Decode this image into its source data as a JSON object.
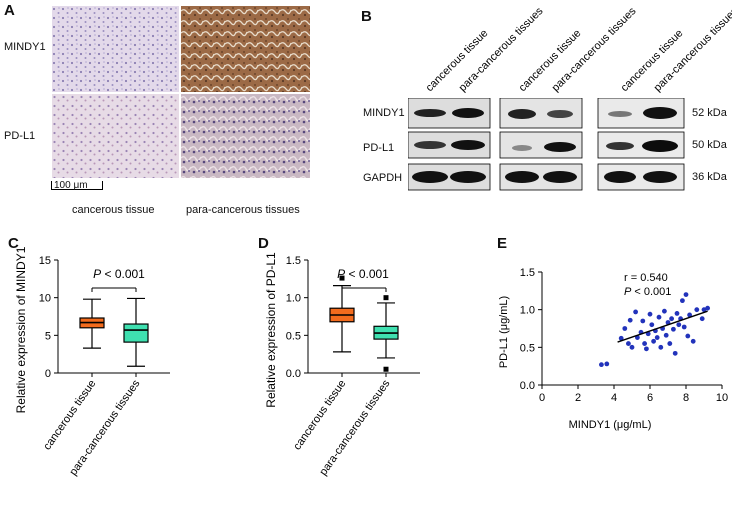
{
  "panels": {
    "A": {
      "letter": "A",
      "row_labels": [
        "MINDY1",
        "PD-L1"
      ],
      "col_labels": [
        "cancerous tissue",
        "para-cancerous tissues"
      ],
      "scale_bar": "100 μm"
    },
    "B": {
      "letter": "B",
      "lane_labels": [
        "cancerous tissue",
        "para-cancerous tissues",
        "cancerous tissue",
        "para-cancerous tissues",
        "cancerous tissue",
        "para-cancerous tissues"
      ],
      "row_labels": [
        "MINDY1",
        "PD-L1",
        "GAPDH"
      ],
      "kda_labels": [
        "52 kDa",
        "50 kDa",
        "36 kDa"
      ]
    },
    "C": {
      "letter": "C"
    },
    "D": {
      "letter": "D"
    },
    "E": {
      "letter": "E"
    }
  },
  "colors": {
    "orange": "#f26b1d",
    "teal": "#3fe0b0",
    "scatter": "#2233bb"
  },
  "chart_data": [
    {
      "panel": "C",
      "type": "boxplot",
      "ylabel": "Relative expression of MINDY1",
      "ylim": [
        0,
        15
      ],
      "yticks": [
        0,
        5,
        10,
        15
      ],
      "annotation": "P < 0.001",
      "groups": [
        {
          "name": "cancerous tissue",
          "color": "#f26b1d",
          "min": 3.3,
          "q1": 6.0,
          "median": 6.7,
          "q3": 7.3,
          "max": 9.8,
          "outliers": []
        },
        {
          "name": "para-cancerous tissues",
          "color": "#3fe0b0",
          "min": 0.9,
          "q1": 4.1,
          "median": 5.7,
          "q3": 6.5,
          "max": 9.9,
          "outliers": []
        }
      ]
    },
    {
      "panel": "D",
      "type": "boxplot",
      "ylabel": "Relative expression of PD-L1",
      "ylim": [
        0.0,
        1.5
      ],
      "yticks": [
        0.0,
        0.5,
        1.0,
        1.5
      ],
      "annotation": "P < 0.001",
      "groups": [
        {
          "name": "cancerous tissue",
          "color": "#f26b1d",
          "min": 0.28,
          "q1": 0.68,
          "median": 0.77,
          "q3": 0.86,
          "max": 1.16,
          "outliers": [
            1.26
          ]
        },
        {
          "name": "para-cancerous tissues",
          "color": "#3fe0b0",
          "min": 0.2,
          "q1": 0.45,
          "median": 0.53,
          "q3": 0.62,
          "max": 0.93,
          "outliers": [
            1.0,
            0.05
          ]
        }
      ]
    },
    {
      "panel": "E",
      "type": "scatter",
      "xlabel": "MINDY1 (μg/mL)",
      "ylabel": "PD-L1 (μg/mL)",
      "xlim": [
        0,
        10
      ],
      "ylim": [
        0.0,
        1.5
      ],
      "xticks": [
        0,
        2,
        4,
        6,
        8,
        10
      ],
      "yticks": [
        0.0,
        0.5,
        1.0,
        1.5
      ],
      "annotation_r": "r = 0.540",
      "annotation_p": "P < 0.001",
      "fit_line": {
        "x0": 4.2,
        "y0": 0.57,
        "x1": 9.2,
        "y1": 0.98
      },
      "points": [
        [
          3.3,
          0.27
        ],
        [
          3.6,
          0.28
        ],
        [
          4.4,
          0.62
        ],
        [
          4.6,
          0.75
        ],
        [
          4.8,
          0.55
        ],
        [
          4.9,
          0.86
        ],
        [
          5.0,
          0.5
        ],
        [
          5.2,
          0.97
        ],
        [
          5.3,
          0.63
        ],
        [
          5.5,
          0.7
        ],
        [
          5.6,
          0.85
        ],
        [
          5.7,
          0.55
        ],
        [
          5.8,
          0.48
        ],
        [
          5.9,
          0.68
        ],
        [
          6.0,
          0.94
        ],
        [
          6.1,
          0.8
        ],
        [
          6.2,
          0.58
        ],
        [
          6.3,
          0.72
        ],
        [
          6.4,
          0.63
        ],
        [
          6.5,
          0.9
        ],
        [
          6.6,
          0.5
        ],
        [
          6.7,
          0.75
        ],
        [
          6.8,
          0.98
        ],
        [
          6.9,
          0.66
        ],
        [
          7.0,
          0.83
        ],
        [
          7.1,
          0.55
        ],
        [
          7.2,
          0.88
        ],
        [
          7.3,
          0.74
        ],
        [
          7.4,
          0.42
        ],
        [
          7.5,
          0.95
        ],
        [
          7.6,
          0.8
        ],
        [
          7.7,
          0.88
        ],
        [
          7.8,
          1.12
        ],
        [
          7.9,
          0.77
        ],
        [
          8.0,
          1.2
        ],
        [
          8.1,
          0.65
        ],
        [
          8.2,
          0.93
        ],
        [
          8.4,
          0.58
        ],
        [
          8.6,
          1.0
        ],
        [
          8.9,
          0.88
        ],
        [
          9.0,
          1.0
        ],
        [
          9.2,
          1.02
        ]
      ]
    }
  ]
}
